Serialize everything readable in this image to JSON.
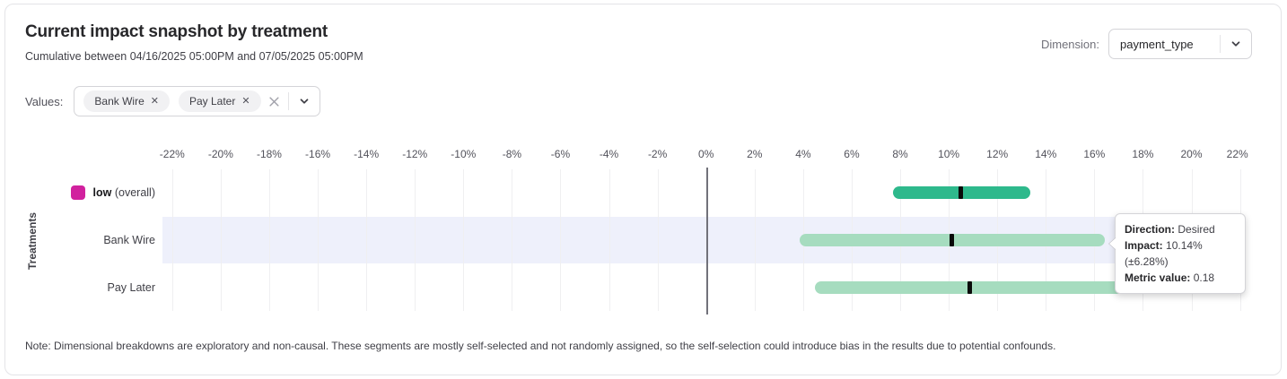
{
  "header": {
    "title": "Current impact snapshot by treatment",
    "subtitle": "Cumulative between 04/16/2025 05:00PM and 07/05/2025 05:00PM",
    "dimension_label": "Dimension:",
    "dimension_value": "payment_type"
  },
  "filters": {
    "label": "Values:",
    "chips": [
      {
        "label": "Bank Wire"
      },
      {
        "label": "Pay Later"
      }
    ]
  },
  "chart_data": {
    "type": "range_bar",
    "ylabel": "Treatments",
    "unit": "%",
    "axis": {
      "min": -22.4,
      "max": 22.2,
      "tick_min": -22,
      "tick_max": 22,
      "tick_step": 2,
      "grid": true
    },
    "rows": [
      {
        "label": "low",
        "label_suffix": " (overall)",
        "legend_color": "#d1219e",
        "bar_color": "#2eb98c",
        "low": 7.7,
        "center": 10.5,
        "high": 13.35,
        "highlighted": false
      },
      {
        "label": "Bank Wire",
        "bar_color": "#a6dcbf",
        "low": 3.86,
        "center": 10.14,
        "high": 16.42,
        "highlighted": true
      },
      {
        "label": "Pay Later",
        "bar_color": "#a6dcbf",
        "low": 4.5,
        "center": 10.87,
        "high": 17.2,
        "highlighted": false
      }
    ],
    "colors": {
      "row_highlight": "#eef0fb",
      "gridline": "#efeff1",
      "zero_line": "#71717a",
      "marker": "#0a0a0a"
    }
  },
  "tooltip": {
    "anchor_row": "Bank Wire",
    "lines": [
      {
        "label": "Direction:",
        "value": " Desired"
      },
      {
        "label": "Impact:",
        "value": " 10.14% (±6.28%)"
      },
      {
        "label": "Metric value:",
        "value": " 0.18"
      }
    ]
  },
  "note": "Note: Dimensional breakdowns are exploratory and non-causal. These segments are mostly self-selected and not randomly assigned, so the self-selection could introduce bias in the results due to potential confounds."
}
